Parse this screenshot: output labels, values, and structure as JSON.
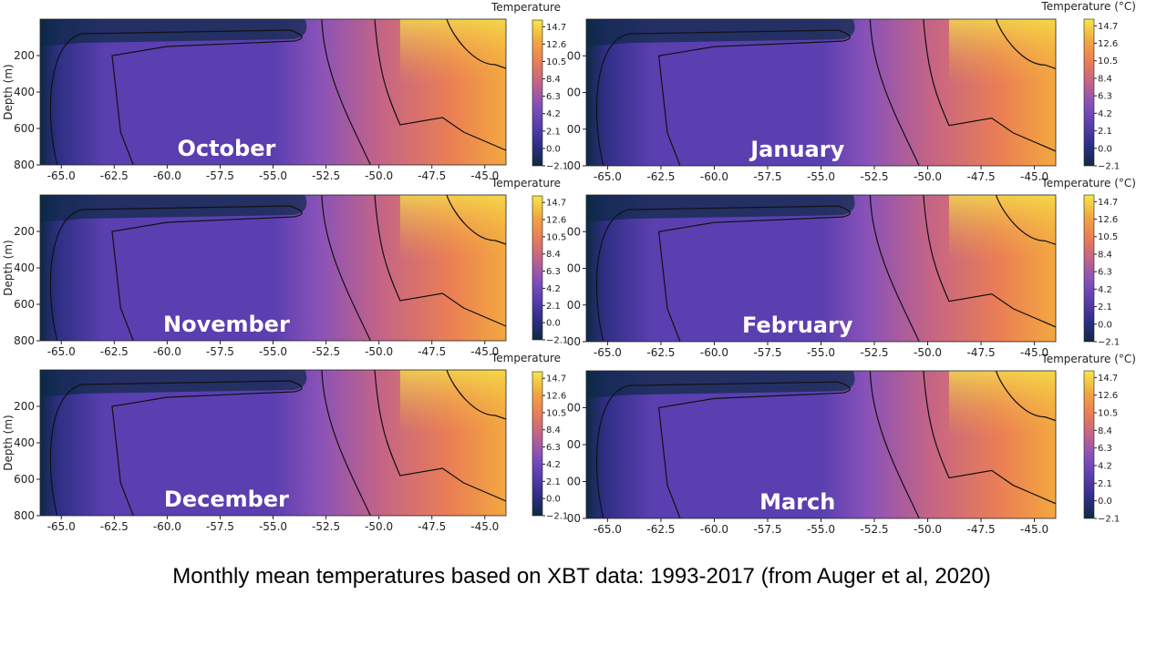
{
  "caption": "Monthly mean temperatures based on XBT data: 1993-2017 (from Auger et al, 2020)",
  "palette": [
    "#0d2a45",
    "#2f2f86",
    "#5a3fb0",
    "#8a52b8",
    "#c46486",
    "#ea7e55",
    "#f3a83f",
    "#f6e84a"
  ],
  "chart_data": [
    {
      "type": "heatmap",
      "title": "October",
      "panel": "left-1",
      "xlim": [
        -66,
        -44
      ],
      "ylim": [
        800,
        0
      ],
      "xticks": [
        "-65.0",
        "-62.5",
        "-60.0",
        "-57.5",
        "-55.0",
        "-52.5",
        "-50.0",
        "-47.5",
        "-45.0"
      ],
      "yticks": [
        "200",
        "400",
        "600",
        "800"
      ],
      "ylabel": "Depth (m)",
      "colorbar_label": "Temperature",
      "colorbar_ticks": [
        "14.7",
        "12.6",
        "10.5",
        "8.4",
        "6.3",
        "4.2",
        "2.1",
        "0.0",
        "−2.1"
      ],
      "clim": [
        -2.1,
        15.5
      ]
    },
    {
      "type": "heatmap",
      "title": "November",
      "panel": "left-2",
      "xlim": [
        -66,
        -44
      ],
      "ylim": [
        800,
        0
      ],
      "xticks": [
        "-65.0",
        "-62.5",
        "-60.0",
        "-57.5",
        "-55.0",
        "-52.5",
        "-50.0",
        "-47.5",
        "-45.0"
      ],
      "yticks": [
        "200",
        "400",
        "600",
        "800"
      ],
      "ylabel": "Depth (m)",
      "colorbar_label": "Temperature",
      "colorbar_ticks": [
        "14.7",
        "12.6",
        "10.5",
        "8.4",
        "6.3",
        "4.2",
        "2.1",
        "0.0",
        "−2.1"
      ],
      "clim": [
        -2.1,
        15.5
      ]
    },
    {
      "type": "heatmap",
      "title": "December",
      "panel": "left-3",
      "xlim": [
        -66,
        -44
      ],
      "ylim": [
        800,
        0
      ],
      "xticks": [
        "-65.0",
        "-62.5",
        "-60.0",
        "-57.5",
        "-55.0",
        "-52.5",
        "-50.0",
        "-47.5",
        "-45.0"
      ],
      "yticks": [
        "200",
        "400",
        "600",
        "800"
      ],
      "ylabel": "Depth (m)",
      "colorbar_label": "Temperature",
      "colorbar_ticks": [
        "14.7",
        "12.6",
        "10.5",
        "8.4",
        "6.3",
        "4.2",
        "2.1",
        "0.0",
        "−2.1"
      ],
      "clim": [
        -2.1,
        15.5
      ]
    },
    {
      "type": "heatmap",
      "title": "January",
      "panel": "right-1",
      "xlim": [
        -66,
        -44
      ],
      "ylim": [
        800,
        0
      ],
      "xticks": [
        "-65.0",
        "-62.5",
        "-60.0",
        "-57.5",
        "-55.0",
        "-52.5",
        "-50.0",
        "-47.5",
        "-45.0"
      ],
      "yticks": [
        "00",
        "00",
        "00",
        "00"
      ],
      "ylabel": "",
      "colorbar_label": "Temperature (°C)",
      "colorbar_ticks": [
        "14.7",
        "12.6",
        "10.5",
        "8.4",
        "6.3",
        "4.2",
        "2.1",
        "0.0",
        "−2.1"
      ],
      "clim": [
        -2.1,
        15.5
      ]
    },
    {
      "type": "heatmap",
      "title": "February",
      "panel": "right-2",
      "xlim": [
        -66,
        -44
      ],
      "ylim": [
        800,
        0
      ],
      "xticks": [
        "-65.0",
        "-62.5",
        "-60.0",
        "-57.5",
        "-55.0",
        "-52.5",
        "-50.0",
        "-47.5",
        "-45.0"
      ],
      "yticks": [
        "00",
        "00",
        "00",
        "00"
      ],
      "ylabel": "",
      "colorbar_label": "Temperature (°C)",
      "colorbar_ticks": [
        "14.7",
        "12.6",
        "10.5",
        "8.4",
        "6.3",
        "4.2",
        "2.1",
        "0.0",
        "−2.1"
      ],
      "clim": [
        -2.1,
        15.5
      ]
    },
    {
      "type": "heatmap",
      "title": "March",
      "panel": "right-3",
      "xlim": [
        -66,
        -44
      ],
      "ylim": [
        800,
        0
      ],
      "xticks": [
        "-65.0",
        "-62.5",
        "-60.0",
        "-57.5",
        "-55.0",
        "-52.5",
        "-50.0",
        "-47.5",
        "-45.0"
      ],
      "yticks": [
        "00",
        "00",
        "00",
        "00"
      ],
      "ylabel": "",
      "colorbar_label": "Temperature (°C)",
      "colorbar_ticks": [
        "14.7",
        "12.6",
        "10.5",
        "8.4",
        "6.3",
        "4.2",
        "2.1",
        "0.0",
        "−2.1"
      ],
      "clim": [
        -2.1,
        15.5
      ]
    }
  ]
}
